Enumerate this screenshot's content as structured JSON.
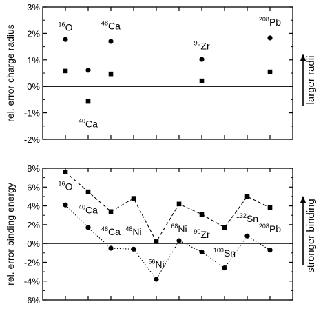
{
  "chart_data": [
    {
      "type": "scatter",
      "ylabel": "rel. error charge radius",
      "ylim": [
        -2,
        3
      ],
      "ytick_labels": [
        "3%",
        "2%",
        "1%",
        "0%",
        "-1%",
        "-2%"
      ],
      "ytick_values": [
        3,
        2,
        1,
        0,
        -1,
        -2
      ],
      "side_label": "larger radii",
      "series": [
        {
          "marker": "circle",
          "x": [
            1,
            2,
            3,
            7,
            10
          ],
          "values": [
            1.77,
            0.61,
            1.7,
            1.02,
            1.83
          ]
        },
        {
          "marker": "square",
          "x": [
            1,
            2,
            3,
            7,
            10
          ],
          "values": [
            0.58,
            -0.57,
            0.47,
            0.21,
            0.55
          ]
        }
      ],
      "annotations": [
        {
          "mass": "16",
          "symbol": "O",
          "x": 1,
          "y": 2.1
        },
        {
          "mass": "40",
          "symbol": "Ca",
          "x": 2,
          "y": -1.55
        },
        {
          "mass": "48",
          "symbol": "Ca",
          "x": 3,
          "y": 2.15
        },
        {
          "mass": "90",
          "symbol": "Zr",
          "x": 7,
          "y": 1.4
        },
        {
          "mass": "208",
          "symbol": "Pb",
          "x": 10,
          "y": 2.3
        }
      ]
    },
    {
      "type": "line",
      "ylabel": "rel. error binding energy",
      "ylim": [
        -6,
        8
      ],
      "ytick_labels": [
        "8%",
        "6%",
        "4%",
        "2%",
        "0%",
        "-2%",
        "-4%",
        "-6%"
      ],
      "ytick_values": [
        8,
        6,
        4,
        2,
        0,
        -2,
        -4,
        -6
      ],
      "side_label": "stronger binding",
      "x": [
        1,
        2,
        3,
        4,
        5,
        6,
        7,
        8,
        9,
        10
      ],
      "series": [
        {
          "marker": "square",
          "style": "dashed",
          "values": [
            7.6,
            5.5,
            3.4,
            4.8,
            0.2,
            4.2,
            3.1,
            1.7,
            5.0,
            3.8
          ]
        },
        {
          "marker": "circle",
          "style": "dotted",
          "values": [
            4.1,
            1.7,
            -0.5,
            -0.6,
            -3.8,
            0.3,
            -0.9,
            -2.6,
            0.8,
            -0.7
          ]
        }
      ],
      "annotations": [
        {
          "mass": "16",
          "symbol": "O",
          "x": 1.0,
          "y": 5.7
        },
        {
          "mass": "40",
          "symbol": "Ca",
          "x": 2.0,
          "y": 3.2
        },
        {
          "mass": "48",
          "symbol": "Ca",
          "x": 3.0,
          "y": 0.9
        },
        {
          "mass": "48",
          "symbol": "Ni",
          "x": 4.0,
          "y": 0.9
        },
        {
          "mass": "56",
          "symbol": "Ni",
          "x": 5.0,
          "y": -2.6
        },
        {
          "mass": "68",
          "symbol": "Ni",
          "x": 6.0,
          "y": 1.2
        },
        {
          "mass": "90",
          "symbol": "Zr",
          "x": 7.0,
          "y": 0.6
        },
        {
          "mass": "100",
          "symbol": "Sn",
          "x": 8.0,
          "y": -1.4
        },
        {
          "mass": "132",
          "symbol": "Sn",
          "x": 9.0,
          "y": 2.3
        },
        {
          "mass": "208",
          "symbol": "Pb",
          "x": 10.0,
          "y": 1.2
        }
      ]
    }
  ]
}
